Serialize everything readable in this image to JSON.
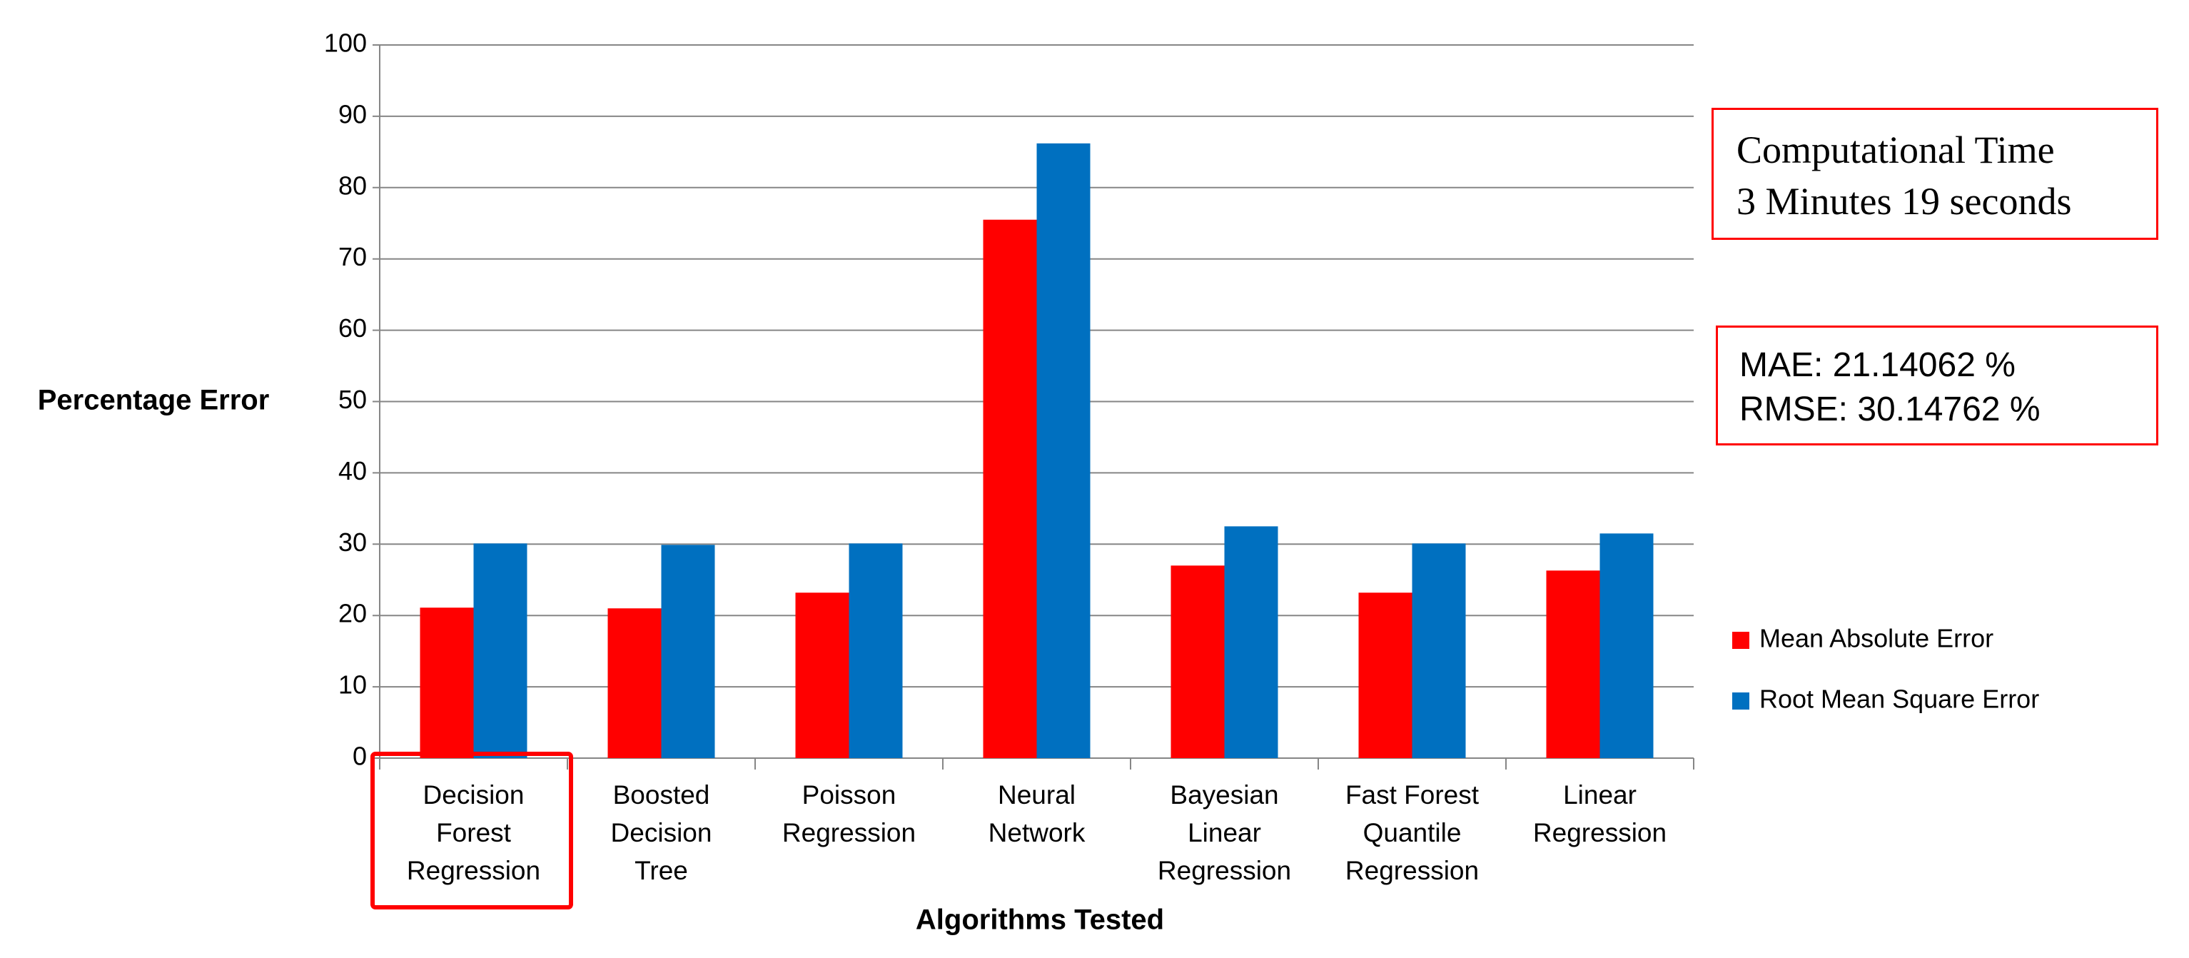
{
  "chart_data": {
    "type": "bar",
    "x_label": "Algorithms Tested",
    "y_label": "Percentage Error",
    "categories": [
      "Decision\nForest\nRegression",
      "Boosted\nDecision\nTree",
      "Poisson\nRegression",
      "Neural\nNetwork",
      "Bayesian\nLinear\nRegression",
      "Fast Forest\nQuantile\nRegression",
      "Linear\nRegression"
    ],
    "series": [
      {
        "name": "Mean Absolute Error",
        "color": "#ff0000",
        "values": [
          21.1,
          21,
          23.2,
          75.5,
          27,
          23.2,
          26.3
        ]
      },
      {
        "name": "Root Mean Square Error",
        "color": "#0070c0",
        "values": [
          30.1,
          29.9,
          30.1,
          86.2,
          32.5,
          30.1,
          31.5
        ]
      }
    ],
    "ylim": [
      0,
      100
    ],
    "yticks": [
      0,
      10,
      20,
      30,
      40,
      50,
      60,
      70,
      80,
      90,
      100
    ],
    "grid": true,
    "legend": "right",
    "annotations": [
      "Computational Time\n3 Minutes  19 seconds",
      "MAE: 21.14062 %\nRMSE: 30.14762 %"
    ]
  }
}
